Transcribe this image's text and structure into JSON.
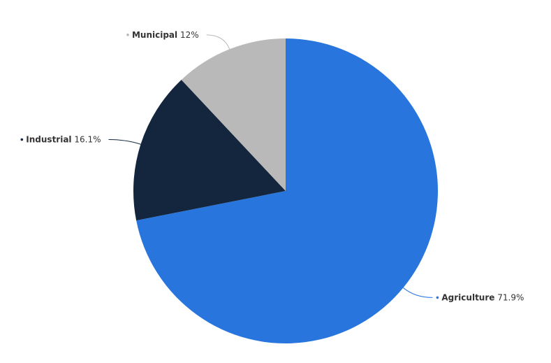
{
  "chart_data": {
    "type": "pie",
    "categories": [
      "Agriculture",
      "Industrial",
      "Municipal"
    ],
    "values": [
      71.9,
      16.1,
      12
    ],
    "value_labels": [
      "71.9%",
      "16.1%",
      "12%"
    ],
    "colors": [
      "#2876dd",
      "#13263d",
      "#b9b9b9"
    ]
  }
}
